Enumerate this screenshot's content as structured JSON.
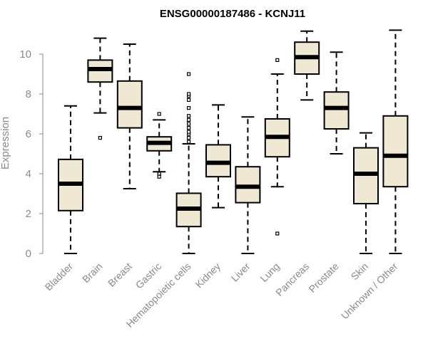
{
  "chart_data": {
    "type": "boxplot",
    "title": "ENSG00000187486 - KCNJ11",
    "xlabel": "",
    "ylabel": "Expression",
    "ylim": [
      0,
      11.3
    ],
    "yticks": [
      0,
      2,
      4,
      6,
      8,
      10
    ],
    "grid": false,
    "box_color": "#efe8d2",
    "categories": [
      "Bladder",
      "Brain",
      "Breast",
      "Gastric",
      "Hematopoietic cells",
      "Kidney",
      "Liver",
      "Lung",
      "Pancreas",
      "Prostate",
      "Skin",
      "Unknown / Other"
    ],
    "boxes": [
      {
        "name": "Bladder",
        "min": 0.0,
        "q1": 2.15,
        "median": 3.5,
        "q3": 4.72,
        "max": 7.4,
        "outliers": []
      },
      {
        "name": "Brain",
        "min": 7.05,
        "q1": 8.6,
        "median": 9.25,
        "q3": 9.7,
        "max": 10.8,
        "outliers": [
          5.8
        ]
      },
      {
        "name": "Breast",
        "min": 3.25,
        "q1": 6.3,
        "median": 7.3,
        "q3": 8.65,
        "max": 10.5,
        "outliers": []
      },
      {
        "name": "Gastric",
        "min": 4.1,
        "q1": 5.15,
        "median": 5.55,
        "q3": 5.85,
        "max": 6.7,
        "outliers": [
          7.0,
          4.0,
          3.85
        ]
      },
      {
        "name": "Hematopoietic cells",
        "min": 0.0,
        "q1": 1.35,
        "median": 2.25,
        "q3": 3.02,
        "max": 5.5,
        "outliers": [
          5.6,
          5.8,
          6.0,
          6.1,
          6.3,
          6.5,
          6.7,
          6.9,
          7.3,
          7.7,
          7.9,
          8.0,
          9.0
        ]
      },
      {
        "name": "Kidney",
        "min": 2.3,
        "q1": 3.85,
        "median": 4.55,
        "q3": 5.45,
        "max": 7.45,
        "outliers": []
      },
      {
        "name": "Liver",
        "min": 0.0,
        "q1": 2.55,
        "median": 3.35,
        "q3": 4.35,
        "max": 6.85,
        "outliers": []
      },
      {
        "name": "Lung",
        "min": 3.35,
        "q1": 4.85,
        "median": 5.85,
        "q3": 6.75,
        "max": 9.0,
        "outliers": [
          9.7,
          1.0
        ]
      },
      {
        "name": "Pancreas",
        "min": 7.7,
        "q1": 9.0,
        "median": 9.85,
        "q3": 10.6,
        "max": 11.15,
        "outliers": []
      },
      {
        "name": "Prostate",
        "min": 5.0,
        "q1": 6.25,
        "median": 7.3,
        "q3": 8.1,
        "max": 10.1,
        "outliers": []
      },
      {
        "name": "Skin",
        "min": 0.0,
        "q1": 2.5,
        "median": 4.0,
        "q3": 5.3,
        "max": 6.05,
        "outliers": []
      },
      {
        "name": "Unknown / Other",
        "min": 0.0,
        "q1": 3.35,
        "median": 4.9,
        "q3": 6.9,
        "max": 11.2,
        "outliers": []
      }
    ]
  }
}
